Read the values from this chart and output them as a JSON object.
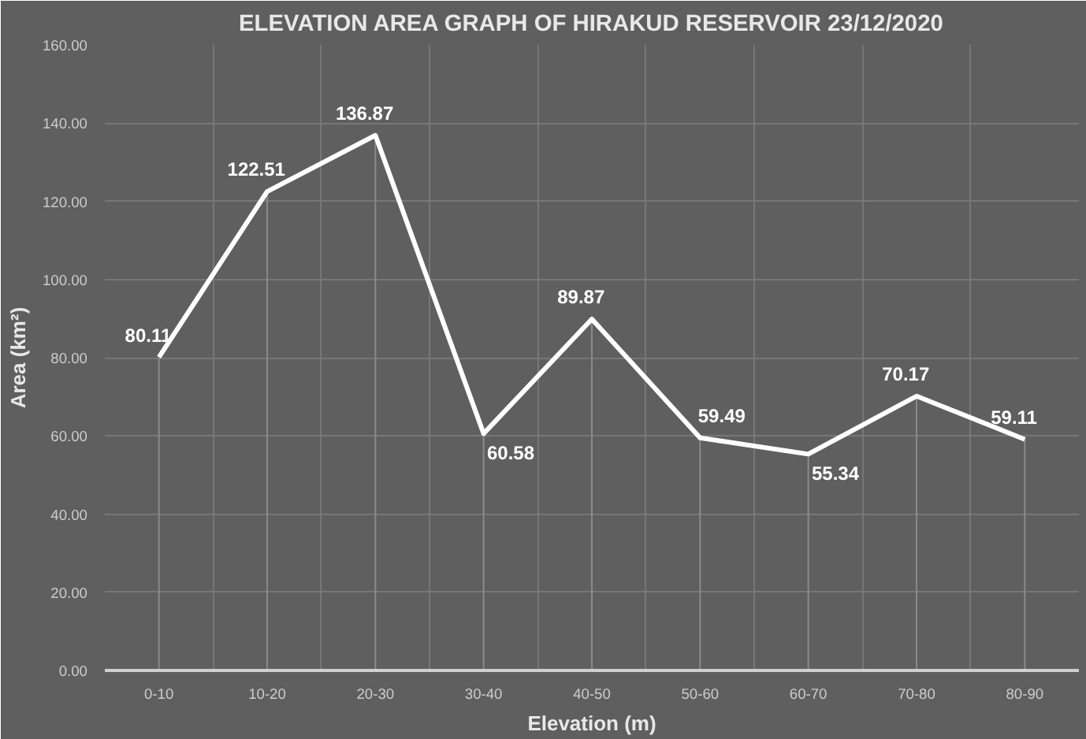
{
  "chart_data": {
    "type": "line",
    "title": "ELEVATION AREA GRAPH OF HIRAKUD RESERVOIR 23/12/2020",
    "xlabel": "Elevation (m)",
    "ylabel": "Area (km²)",
    "categories": [
      "0-10",
      "10-20",
      "20-30",
      "30-40",
      "40-50",
      "50-60",
      "60-70",
      "70-80",
      "80-90"
    ],
    "series": [
      {
        "color": "#ffffff",
        "values": [
          80.11,
          122.51,
          136.87,
          60.58,
          89.87,
          59.49,
          55.34,
          70.17,
          59.11
        ]
      }
    ],
    "ylim": [
      0,
      160
    ],
    "yticks": [
      {
        "value": 0,
        "label": "0.00"
      },
      {
        "value": 20,
        "label": "20.00"
      },
      {
        "value": 40,
        "label": "40.00"
      },
      {
        "value": 60,
        "label": "60.00"
      },
      {
        "value": 80,
        "label": "80.00"
      },
      {
        "value": 100,
        "label": "100.00"
      },
      {
        "value": 120,
        "label": "120.00"
      },
      {
        "value": 140,
        "label": "140.00"
      },
      {
        "value": 160,
        "label": "160.00"
      }
    ],
    "grid": true,
    "data_labels": true,
    "marker": "none",
    "line_style": "solid"
  }
}
